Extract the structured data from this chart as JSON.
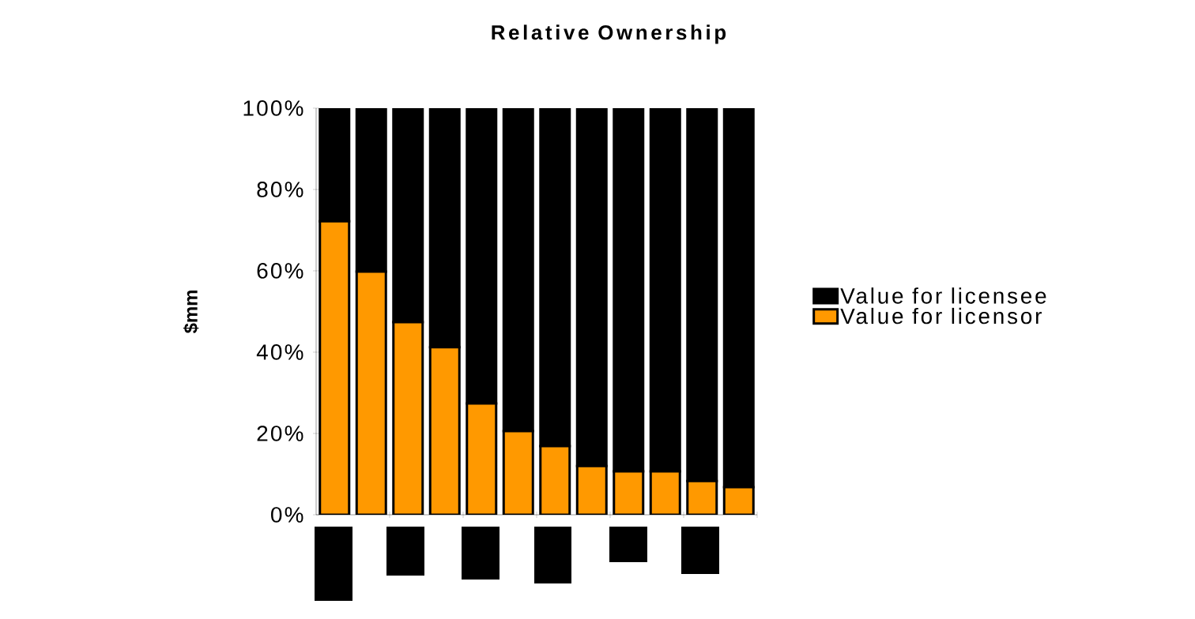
{
  "chart_data": {
    "type": "bar",
    "title": "Relative Ownership",
    "ylabel": "$mm",
    "stacked": true,
    "categories": [
      null,
      null,
      null,
      null,
      null,
      null,
      null,
      null,
      null,
      null,
      null,
      null
    ],
    "series": [
      {
        "name": "Value for licensor",
        "color": "#ff9900",
        "values": [
          72.2,
          59.8,
          47.4,
          41.2,
          27.4,
          20.6,
          16.9,
          12.0,
          10.7,
          10.7,
          8.3,
          6.8
        ]
      },
      {
        "name": "Value for licensee",
        "color": "#000000",
        "values": [
          27.8,
          40.2,
          52.6,
          58.8,
          72.6,
          79.4,
          83.1,
          88.0,
          89.3,
          89.3,
          91.7,
          93.2
        ]
      }
    ],
    "ylim": [
      0,
      100
    ],
    "yticks": [
      {
        "value": 0,
        "label": "0%"
      },
      {
        "value": 20,
        "label": "20%"
      },
      {
        "value": 40,
        "label": "40%"
      },
      {
        "value": 60,
        "label": "60%"
      },
      {
        "value": 80,
        "label": "80%"
      },
      {
        "value": 100,
        "label": "100%"
      }
    ],
    "tick_labels": "y",
    "legend": "right",
    "grid": false
  }
}
